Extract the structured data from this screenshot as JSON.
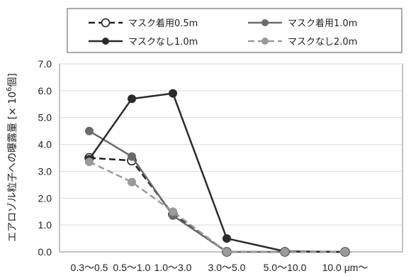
{
  "chart_data": {
    "type": "line",
    "categories": [
      "0.3～0.5",
      "0.5～1.0",
      "1.0～3.0",
      "3.0～5.0",
      "5.0～10.0",
      "10.0 μm～"
    ],
    "ylim": [
      0,
      7
    ],
    "yticks": [
      "0.0",
      "1.0",
      "2.0",
      "3.0",
      "4.0",
      "5.0",
      "6.0",
      "7.0"
    ],
    "ylabel_main": "エアロゾル粒子への曝露量 [× 10",
    "ylabel_sup": "6",
    "ylabel_end": "個]",
    "grid": true,
    "legend_position": "top",
    "series": [
      {
        "name": "マスク着用0.5m",
        "values": [
          3.5,
          3.4,
          1.4,
          0.0,
          0.0,
          0.0
        ],
        "color": "#222222",
        "dash": "dashed",
        "marker": "open-circle"
      },
      {
        "name": "マスク着用1.0m",
        "values": [
          4.5,
          3.55,
          1.35,
          0.0,
          0.0,
          0.0
        ],
        "color": "#6b6b6b",
        "dash": "solid",
        "marker": "filled-circle"
      },
      {
        "name": "マスクなし1.0m",
        "values": [
          3.45,
          5.7,
          5.9,
          0.5,
          0.02,
          0.0
        ],
        "color": "#2b2b2b",
        "dash": "solid",
        "marker": "filled-circle"
      },
      {
        "name": "マスクなし2.0m",
        "values": [
          3.35,
          2.6,
          1.5,
          0.0,
          0.0,
          0.0
        ],
        "color": "#9a9a9a",
        "dash": "dashed",
        "marker": "filled-circle"
      }
    ]
  }
}
